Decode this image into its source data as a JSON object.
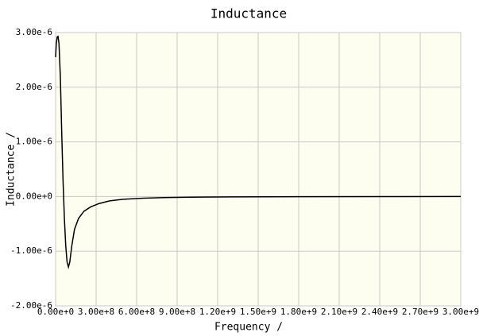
{
  "chart_data": {
    "type": "line",
    "title": "Inductance",
    "x_label": "Frequency /",
    "y_label": "Inductance /",
    "x": [
      0,
      5000000.0,
      12000000.0,
      18000000.0,
      25000000.0,
      35000000.0,
      45000000.0,
      55000000.0,
      65000000.0,
      75000000.0,
      85000000.0,
      95000000.0,
      105000000.0,
      120000000.0,
      140000000.0,
      170000000.0,
      210000000.0,
      260000000.0,
      320000000.0,
      400000000.0,
      500000000.0,
      650000000.0,
      800000000.0,
      1000000000.0,
      1300000000.0,
      1800000000.0,
      2400000000.0,
      3000000000.0
    ],
    "values": [
      2.55e-06,
      2.8e-06,
      2.92e-06,
      2.93e-06,
      2.8e-06,
      2.2e-06,
      1.2e-06,
      3e-07,
      -4e-07,
      -9e-07,
      -1.2e-06,
      -1.29e-06,
      -1.2e-06,
      -9e-07,
      -6e-07,
      -4e-07,
      -2.7e-07,
      -1.9e-07,
      -1.3e-07,
      -8e-08,
      -5e-08,
      -3e-08,
      -2e-08,
      -1.2e-08,
      -7e-09,
      -3e-09,
      -1e-09,
      0
    ],
    "color": "#000000",
    "xlim": [
      0,
      3000000000.0
    ],
    "xticks": [
      {
        "value": 0,
        "label": "0.00e+0"
      },
      {
        "value": 300000000.0,
        "label": "3.00e+8"
      },
      {
        "value": 600000000.0,
        "label": "6.00e+8"
      },
      {
        "value": 900000000.0,
        "label": "9.00e+8"
      },
      {
        "value": 1200000000.0,
        "label": "1.20e+9"
      },
      {
        "value": 1500000000.0,
        "label": "1.50e+9"
      },
      {
        "value": 1800000000.0,
        "label": "1.80e+9"
      },
      {
        "value": 2100000000.0,
        "label": "2.10e+9"
      },
      {
        "value": 2400000000.0,
        "label": "2.40e+9"
      },
      {
        "value": 2700000000.0,
        "label": "2.70e+9"
      },
      {
        "value": 3000000000.0,
        "label": "3.00e+9"
      }
    ],
    "ylim": [
      -2e-06,
      3e-06
    ],
    "yticks": [
      {
        "value": -2e-06,
        "label": "-2.00e-6"
      },
      {
        "value": -1e-06,
        "label": "-1.00e-6"
      },
      {
        "value": 0,
        "label": "0.00e+0"
      },
      {
        "value": 1e-06,
        "label": "1.00e-6"
      },
      {
        "value": 2e-06,
        "label": "2.00e-6"
      },
      {
        "value": 3e-06,
        "label": "3.00e-6"
      }
    ],
    "grid": true
  }
}
